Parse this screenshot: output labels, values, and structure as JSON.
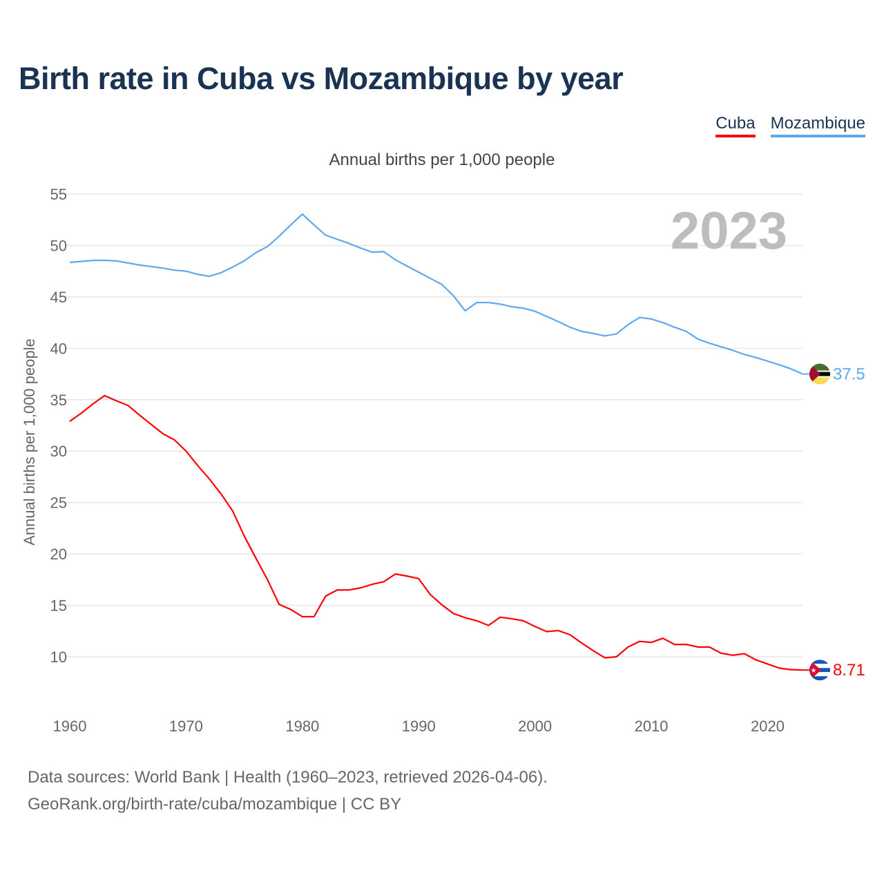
{
  "title": "Birth rate in Cuba vs Mozambique by year",
  "subtitle": "Annual births per 1,000 people",
  "footer": {
    "line1": "Data sources: World Bank | Health (1960–2023, retrieved 2026-04-06).",
    "line2": "GeoRank.org/birth-rate/cuba/mozambique | CC BY"
  },
  "year_label": "2023",
  "chart_data": {
    "type": "line",
    "title": "Birth rate in Cuba vs Mozambique by year",
    "xlabel": "",
    "ylabel": "Annual births per 1,000 people",
    "xlim": [
      1960,
      2023
    ],
    "ylim": [
      10,
      55
    ],
    "yticks": [
      "10",
      "15",
      "20",
      "25",
      "30",
      "35",
      "40",
      "45",
      "50",
      "55"
    ],
    "xticks": [
      "1960",
      "1970",
      "1980",
      "1990",
      "2000",
      "2010",
      "2020"
    ],
    "legend_position": "top-right",
    "grid": true,
    "x_start": 1960,
    "series": [
      {
        "name": "Cuba",
        "color": "#ff0000",
        "end_label": "8.71",
        "values": [
          32.9,
          33.7,
          34.6,
          35.4,
          34.9,
          34.45,
          33.5,
          32.6,
          31.7,
          31.1,
          30.0,
          28.6,
          27.3,
          25.85,
          24.2,
          21.75,
          19.6,
          17.5,
          15.1,
          14.6,
          13.9,
          13.9,
          15.9,
          16.5,
          16.5,
          16.7,
          17.05,
          17.3,
          18.05,
          17.85,
          17.6,
          16.05,
          15.05,
          14.2,
          13.8,
          13.5,
          13.05,
          13.85,
          13.7,
          13.5,
          12.95,
          12.45,
          12.55,
          12.15,
          11.35,
          10.6,
          9.9,
          10.0,
          10.95,
          11.5,
          11.4,
          11.8,
          11.2,
          11.2,
          10.95,
          10.95,
          10.35,
          10.15,
          10.3,
          9.7,
          9.3,
          8.9,
          8.75,
          8.71
        ]
      },
      {
        "name": "Mozambique",
        "color": "#5ea8ee",
        "end_label": "37.5",
        "values": [
          48.35,
          48.45,
          48.55,
          48.55,
          48.5,
          48.3,
          48.1,
          47.95,
          47.8,
          47.6,
          47.5,
          47.2,
          47.0,
          47.35,
          47.9,
          48.5,
          49.3,
          49.9,
          50.9,
          52.0,
          53.05,
          52.0,
          51.0,
          50.6,
          50.2,
          49.75,
          49.35,
          49.4,
          48.6,
          48.0,
          47.4,
          46.8,
          46.2,
          45.1,
          43.65,
          44.45,
          44.45,
          44.3,
          44.05,
          43.9,
          43.6,
          43.1,
          42.6,
          42.05,
          41.65,
          41.45,
          41.2,
          41.4,
          42.3,
          43.0,
          42.85,
          42.5,
          42.05,
          41.65,
          40.9,
          40.5,
          40.15,
          39.8,
          39.4,
          39.1,
          38.75,
          38.4,
          38.0,
          37.5
        ]
      }
    ]
  }
}
